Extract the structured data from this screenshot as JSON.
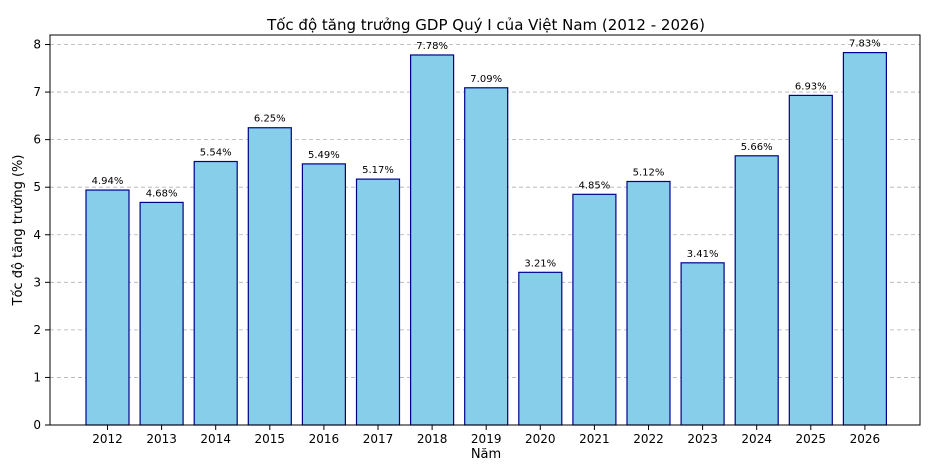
{
  "chart_data": {
    "type": "bar",
    "title": "Tốc độ tăng trưởng GDP Quý I của Việt Nam (2012 - 2026)",
    "xlabel": "Năm",
    "ylabel": "Tốc độ tăng trưởng (%)",
    "categories": [
      "2012",
      "2013",
      "2014",
      "2015",
      "2016",
      "2017",
      "2018",
      "2019",
      "2020",
      "2021",
      "2022",
      "2023",
      "2024",
      "2025",
      "2026"
    ],
    "values": [
      4.94,
      4.68,
      5.54,
      6.25,
      5.49,
      5.17,
      7.78,
      7.09,
      3.21,
      4.85,
      5.12,
      3.41,
      5.66,
      6.93,
      7.83
    ],
    "data_labels": [
      "4.94%",
      "4.68%",
      "5.54%",
      "6.25%",
      "5.49%",
      "5.17%",
      "7.78%",
      "7.09%",
      "3.21%",
      "4.85%",
      "5.12%",
      "3.41%",
      "5.66%",
      "6.93%",
      "7.83%"
    ],
    "ylim": [
      0,
      8.2
    ],
    "yticks": [
      0,
      1,
      2,
      3,
      4,
      5,
      6,
      7,
      8
    ],
    "grid": true,
    "colors": {
      "bar_fill": "#87ceeb",
      "bar_edge": "#00008b",
      "grid": "#b0b0b0"
    }
  }
}
